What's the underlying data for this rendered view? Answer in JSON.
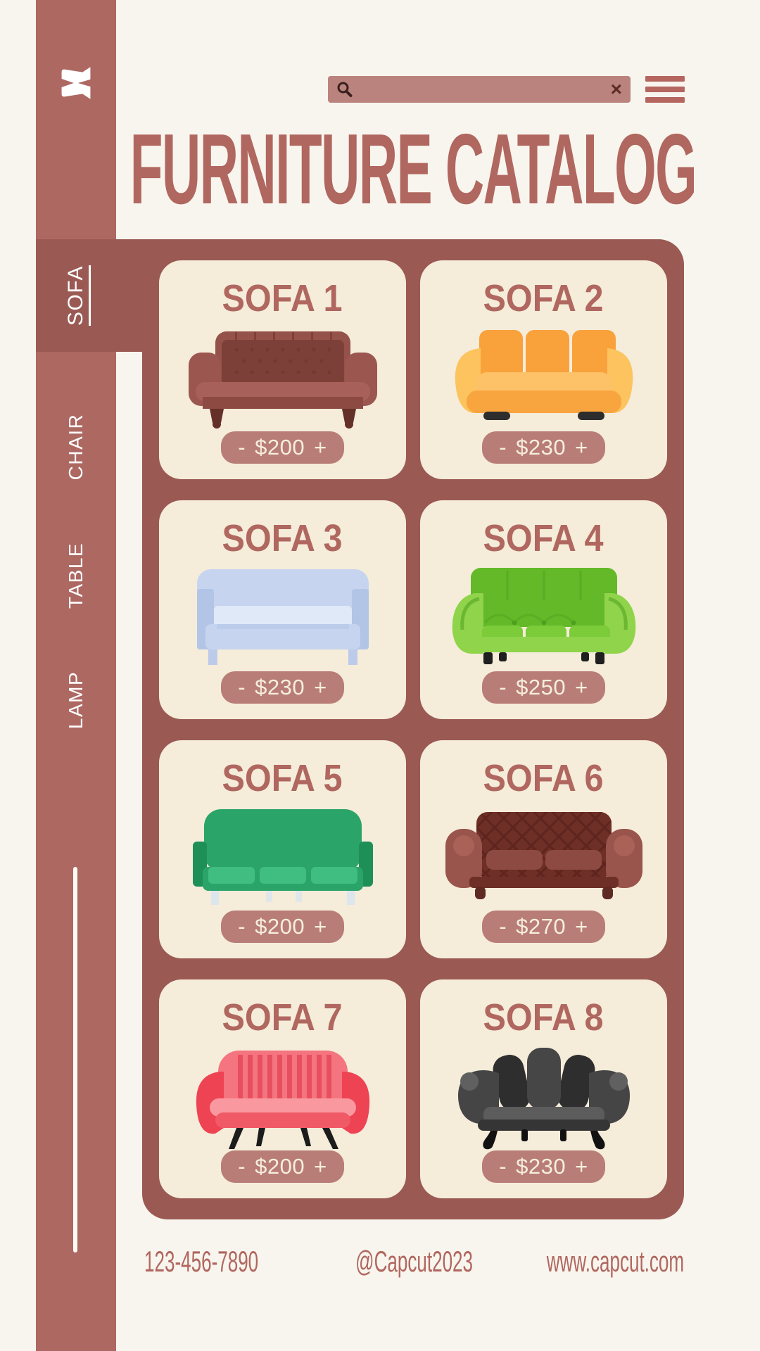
{
  "colors": {
    "bg": "#f8f5ee",
    "sidebar": "#ad6862",
    "sidebarText": "#ffffff",
    "panel": "#9a5a53",
    "card": "#f5ecda",
    "accent": "#b0675f",
    "pillBg": "#b87d76",
    "pillText": "#f6eedd",
    "searchBg": "#bb837d",
    "searchIcon": "#3a211d",
    "searchClose": "#5c2b25",
    "hamburger": "#b5665f",
    "white": "#ffffff"
  },
  "sidebar": {
    "logo_icon": "capcut-logo",
    "items": [
      {
        "label": "SOFA",
        "active": true
      },
      {
        "label": "CHAIR",
        "active": false
      },
      {
        "label": "TABLE",
        "active": false
      },
      {
        "label": "LAMP",
        "active": false
      }
    ]
  },
  "topbar": {
    "search_value": "",
    "search_icon": "magnifier",
    "close_label": "×",
    "menu_icon": "hamburger"
  },
  "title": "FURNITURE CATALOG",
  "catalog": {
    "cards": [
      {
        "name": "SOFA 1",
        "minus": "-",
        "price": "$200",
        "plus": "+",
        "variant": "chesterfield",
        "palette": {
          "body": "#94524a",
          "back": "#7d4038",
          "arm": "#9b574f",
          "seat": "#a8615a",
          "base": "#8c4a42",
          "leg": "#653028"
        }
      },
      {
        "name": "SOFA 2",
        "minus": "-",
        "price": "$230",
        "plus": "+",
        "variant": "modern",
        "palette": {
          "cushion": "#f9a23c",
          "arm": "#fcc35e",
          "seat": "#fdc168",
          "base": "#f9a53f",
          "foot": "#2d2d2d"
        }
      },
      {
        "name": "SOFA 3",
        "minus": "-",
        "price": "$230",
        "plus": "+",
        "variant": "simple",
        "palette": {
          "body": "#c6d4ef",
          "mid": "#b2c5e7",
          "light": "#e0e9f7",
          "leg": "#bccbe9"
        }
      },
      {
        "name": "SOFA 4",
        "minus": "-",
        "price": "$250",
        "plus": "+",
        "variant": "lounge",
        "palette": {
          "back": "#63b928",
          "body": "#8fd44b",
          "dark": "#4f9e1f",
          "cushion": "#7ccb39",
          "foot": "#1f1f1f"
        }
      },
      {
        "name": "SOFA 5",
        "minus": "-",
        "price": "$200",
        "plus": "+",
        "variant": "boxy",
        "palette": {
          "body": "#2aa468",
          "dark": "#1f8f58",
          "cushion": "#40bd81",
          "leg": "#dce6ed"
        }
      },
      {
        "name": "SOFA 6",
        "minus": "-",
        "price": "$270",
        "plus": "+",
        "variant": "chesterfield-dark",
        "palette": {
          "body": "#6e2f27",
          "back": "#5a241d",
          "arm": "#99544b",
          "armIn": "#aa6157",
          "cushion": "#8d4a42",
          "leg": "#5f2a22"
        }
      },
      {
        "name": "SOFA 7",
        "minus": "-",
        "price": "$200",
        "plus": "+",
        "variant": "loveseat",
        "palette": {
          "back": "#f4747f",
          "stripe": "#e84f5e",
          "body": "#ee4353",
          "seat": "#fa98a0",
          "base": "#f05a66",
          "leg": "#1c1c1c"
        }
      },
      {
        "name": "SOFA 8",
        "minus": "-",
        "price": "$230",
        "plus": "+",
        "variant": "wingback",
        "palette": {
          "petal": "#2e2e2e",
          "petalMid": "#464646",
          "arm": "#454545",
          "scroll": "#606060",
          "seat": "#5c5c5c",
          "base": "#353535",
          "leg": "#121212"
        }
      }
    ]
  },
  "footer": {
    "phone": "123-456-7890",
    "handle": "@Capcut2023",
    "website": "www.capcut.com"
  }
}
